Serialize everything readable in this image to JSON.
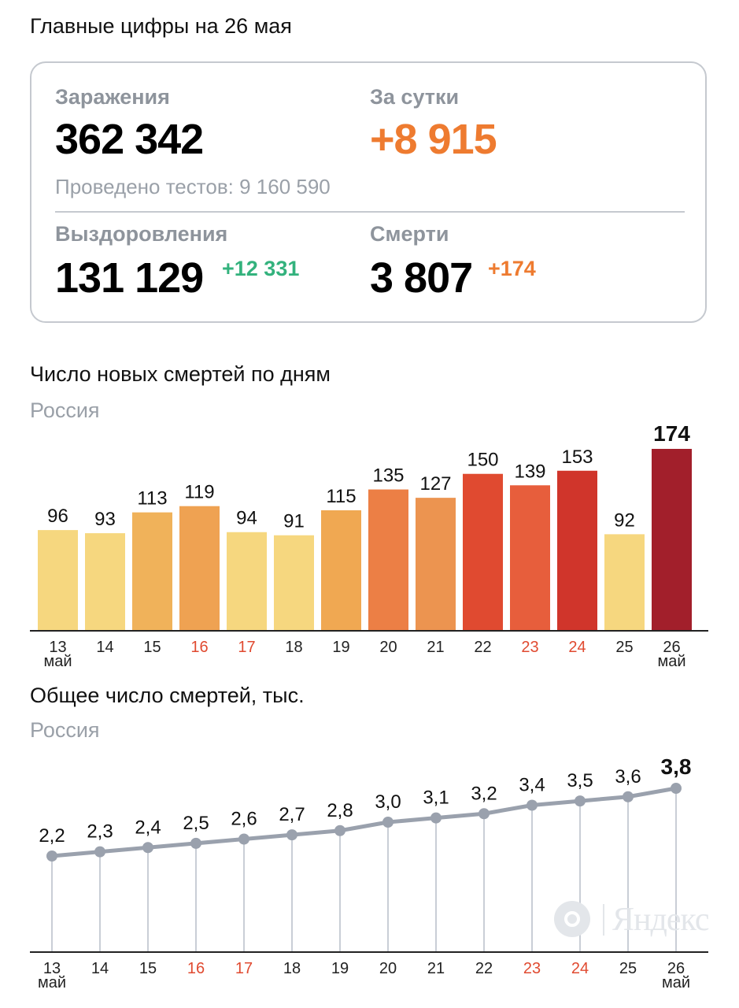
{
  "summary": {
    "heading": "Главные цифры на 26 мая",
    "infections_label": "Заражения",
    "infections_value": "362 342",
    "per_day_label": "За сутки",
    "per_day_value": "+8 915",
    "tests_text": "Проведено тестов: 9 160 590",
    "recoveries_label": "Выздоровления",
    "recoveries_value": "131 129",
    "recoveries_delta": "+12 331",
    "deaths_label": "Смерти",
    "deaths_value": "3 807",
    "deaths_delta": "+174",
    "accent_orange": "#ee7b30",
    "accent_green": "#33b27d"
  },
  "chart_data": [
    {
      "type": "bar",
      "title": "Число новых смертей по дням",
      "subtitle": "Россия",
      "categories": [
        "13",
        "14",
        "15",
        "16",
        "17",
        "18",
        "19",
        "20",
        "21",
        "22",
        "23",
        "24",
        "25",
        "26"
      ],
      "month_label_first": "май",
      "month_label_last": "май",
      "highlighted_categories": [
        "16",
        "17",
        "23",
        "24"
      ],
      "values": [
        96,
        93,
        113,
        119,
        94,
        91,
        115,
        135,
        127,
        150,
        139,
        153,
        92,
        174
      ],
      "value_labels": [
        "96",
        "93",
        "113",
        "119",
        "94",
        "91",
        "115",
        "135",
        "127",
        "150",
        "139",
        "153",
        "92",
        "174"
      ],
      "bar_colors": [
        "#f6d77f",
        "#f6d77f",
        "#f0b25a",
        "#efa252",
        "#f6d77f",
        "#f6d77f",
        "#f0a852",
        "#ec7f45",
        "#ec9450",
        "#e04a30",
        "#e75e3c",
        "#d0352b",
        "#f6d77f",
        "#a21f2b"
      ],
      "ylim": [
        0,
        174
      ],
      "grid": false,
      "legend": "none",
      "highlight_color": "#e04a30"
    },
    {
      "type": "line",
      "title": "Общее число смертей, тыс.",
      "subtitle": "Россия",
      "categories": [
        "13",
        "14",
        "15",
        "16",
        "17",
        "18",
        "19",
        "20",
        "21",
        "22",
        "23",
        "24",
        "25",
        "26"
      ],
      "month_label_first": "май",
      "month_label_last": "май",
      "highlighted_categories": [
        "16",
        "17",
        "23",
        "24"
      ],
      "values": [
        2.2,
        2.3,
        2.4,
        2.5,
        2.6,
        2.7,
        2.8,
        3.0,
        3.1,
        3.2,
        3.4,
        3.5,
        3.6,
        3.8
      ],
      "value_labels": [
        "2,2",
        "2,3",
        "2,4",
        "2,5",
        "2,6",
        "2,7",
        "2,8",
        "3,0",
        "3,1",
        "3,2",
        "3,4",
        "3,5",
        "3,6",
        "3,8"
      ],
      "grid": false,
      "legend": "none",
      "line_color": "#9aa1ad",
      "highlight_color": "#e04a30"
    }
  ],
  "watermark": {
    "text": "Яндекс",
    "icon": "yandex-logo-icon"
  }
}
